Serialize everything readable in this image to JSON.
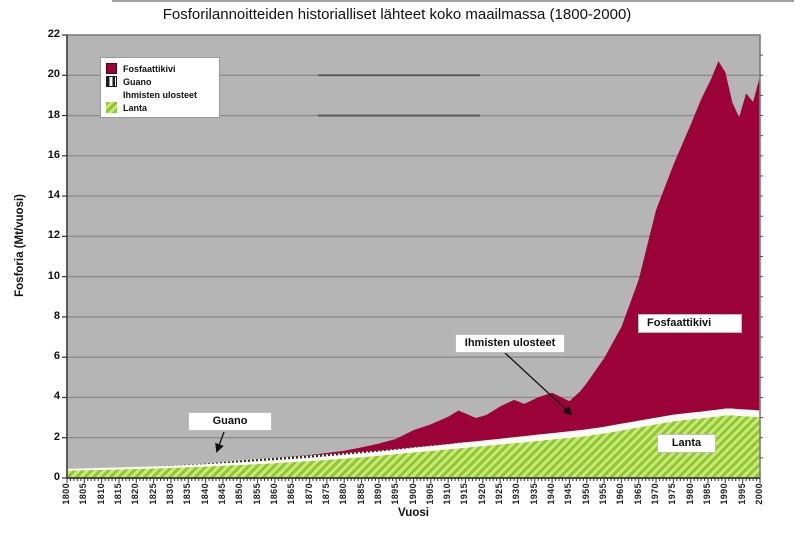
{
  "colors": {
    "fosfaattikivi": "#9B0237",
    "lanta_light": "#CDEA6E",
    "lanta_dark": "#8CC63F",
    "plot_bg": "#B5B5B5",
    "gridline": "#8C8C8C"
  },
  "chart_data": {
    "type": "area",
    "stacked": true,
    "title": "Fosforilannoitteiden historialliset lähteet koko maailmassa (1800-2000)",
    "xlabel": "Vuosi",
    "ylabel": "Fosforia (Mt/vuosi)",
    "xlim": [
      1800,
      2000
    ],
    "ylim": [
      0,
      22
    ],
    "y_tick_step": 2,
    "x_tick_step": 5,
    "grid": true,
    "legend_position": "upper-left",
    "x": [
      1800,
      1810,
      1820,
      1830,
      1840,
      1850,
      1860,
      1870,
      1875,
      1880,
      1885,
      1890,
      1895,
      1900,
      1905,
      1910,
      1913,
      1918,
      1921,
      1925,
      1929,
      1932,
      1936,
      1940,
      1945,
      1948,
      1950,
      1955,
      1960,
      1965,
      1970,
      1975,
      1980,
      1983,
      1986,
      1988,
      1990,
      1992,
      1994,
      1996,
      1998,
      2000
    ],
    "series": [
      {
        "id": "lanta",
        "name": "Lanta",
        "fill": "green-hatch",
        "top_stroke": "#ffffff",
        "values": [
          0.4,
          0.44,
          0.48,
          0.53,
          0.6,
          0.68,
          0.77,
          0.88,
          0.94,
          1.0,
          1.07,
          1.14,
          1.22,
          1.3,
          1.38,
          1.46,
          1.51,
          1.59,
          1.64,
          1.7,
          1.77,
          1.81,
          1.88,
          1.95,
          2.03,
          2.08,
          2.12,
          2.25,
          2.4,
          2.55,
          2.7,
          2.85,
          2.95,
          3.0,
          3.06,
          3.1,
          3.15,
          3.15,
          3.12,
          3.1,
          3.08,
          3.05
        ]
      },
      {
        "id": "ihmisten-ulosteet",
        "name": "Ihmisten ulosteet",
        "fill": "white",
        "top_stroke": null,
        "values": [
          0.05,
          0.06,
          0.07,
          0.08,
          0.09,
          0.1,
          0.12,
          0.13,
          0.14,
          0.15,
          0.16,
          0.17,
          0.18,
          0.2,
          0.21,
          0.22,
          0.23,
          0.24,
          0.24,
          0.25,
          0.26,
          0.27,
          0.28,
          0.28,
          0.29,
          0.3,
          0.3,
          0.3,
          0.3,
          0.3,
          0.3,
          0.3,
          0.3,
          0.3,
          0.3,
          0.3,
          0.3,
          0.3,
          0.3,
          0.3,
          0.3,
          0.3
        ]
      },
      {
        "id": "guano",
        "name": "Guano",
        "fill": "dark-hatch",
        "top_stroke": null,
        "values": [
          0,
          0,
          0,
          0.01,
          0.03,
          0.09,
          0.12,
          0.11,
          0.1,
          0.08,
          0.07,
          0.05,
          0.04,
          0.03,
          0.02,
          0.01,
          0.01,
          0,
          0,
          0,
          0,
          0,
          0,
          0,
          0,
          0,
          0,
          0,
          0,
          0,
          0,
          0,
          0,
          0,
          0,
          0,
          0,
          0,
          0,
          0,
          0,
          0
        ]
      },
      {
        "id": "fosfaattikivi",
        "name": "Fosfaattikivi",
        "fill": "solid-crimson",
        "top_stroke": null,
        "values": [
          0,
          0,
          0,
          0,
          0,
          0,
          0,
          0.02,
          0.06,
          0.12,
          0.22,
          0.35,
          0.5,
          0.85,
          1.05,
          1.35,
          1.6,
          1.15,
          1.25,
          1.6,
          1.85,
          1.6,
          1.85,
          2.0,
          1.5,
          1.9,
          2.3,
          3.4,
          4.8,
          7.0,
          10.3,
          12.4,
          14.3,
          15.5,
          16.5,
          17.3,
          16.7,
          15.2,
          14.5,
          15.7,
          15.3,
          16.6
        ]
      }
    ],
    "legend": [
      {
        "label": "Fosfaattikivi",
        "swatch": "fosfaattikivi"
      },
      {
        "label": "Guano",
        "swatch": "guano"
      },
      {
        "label": "Ihmisten ulosteet",
        "swatch": "none"
      },
      {
        "label": "Lanta",
        "swatch": "lanta"
      }
    ],
    "annotations": [
      {
        "label": "Guano"
      },
      {
        "label": "Ihmisten ulosteet"
      },
      {
        "label": "Fosfaattikivi"
      },
      {
        "label": "Lanta"
      }
    ]
  }
}
